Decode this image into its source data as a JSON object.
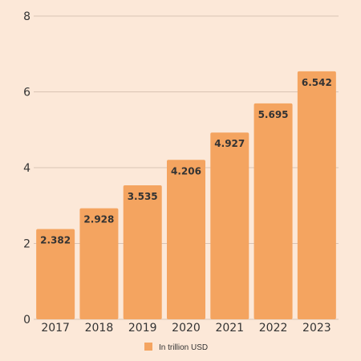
{
  "chart_data": {
    "type": "bar",
    "categories": [
      "2017",
      "2018",
      "2019",
      "2020",
      "2021",
      "2022",
      "2023"
    ],
    "series": [
      {
        "name": "In trillion USD",
        "values": [
          2.382,
          2.928,
          3.535,
          4.206,
          4.927,
          5.695,
          6.542
        ]
      }
    ],
    "data_labels": [
      "2.382",
      "2.928",
      "3.535",
      "4.206",
      "4.927",
      "5.695",
      "6.542"
    ],
    "y_ticks": [
      "0",
      "2",
      "4",
      "6",
      "8"
    ],
    "ylim": [
      0,
      8
    ],
    "grid": true,
    "legend_position": "bottom-center",
    "colors": {
      "background": "#fce8d8",
      "bar": "#f4a460",
      "grid": "#d9c3b4",
      "text": "#333333"
    }
  }
}
